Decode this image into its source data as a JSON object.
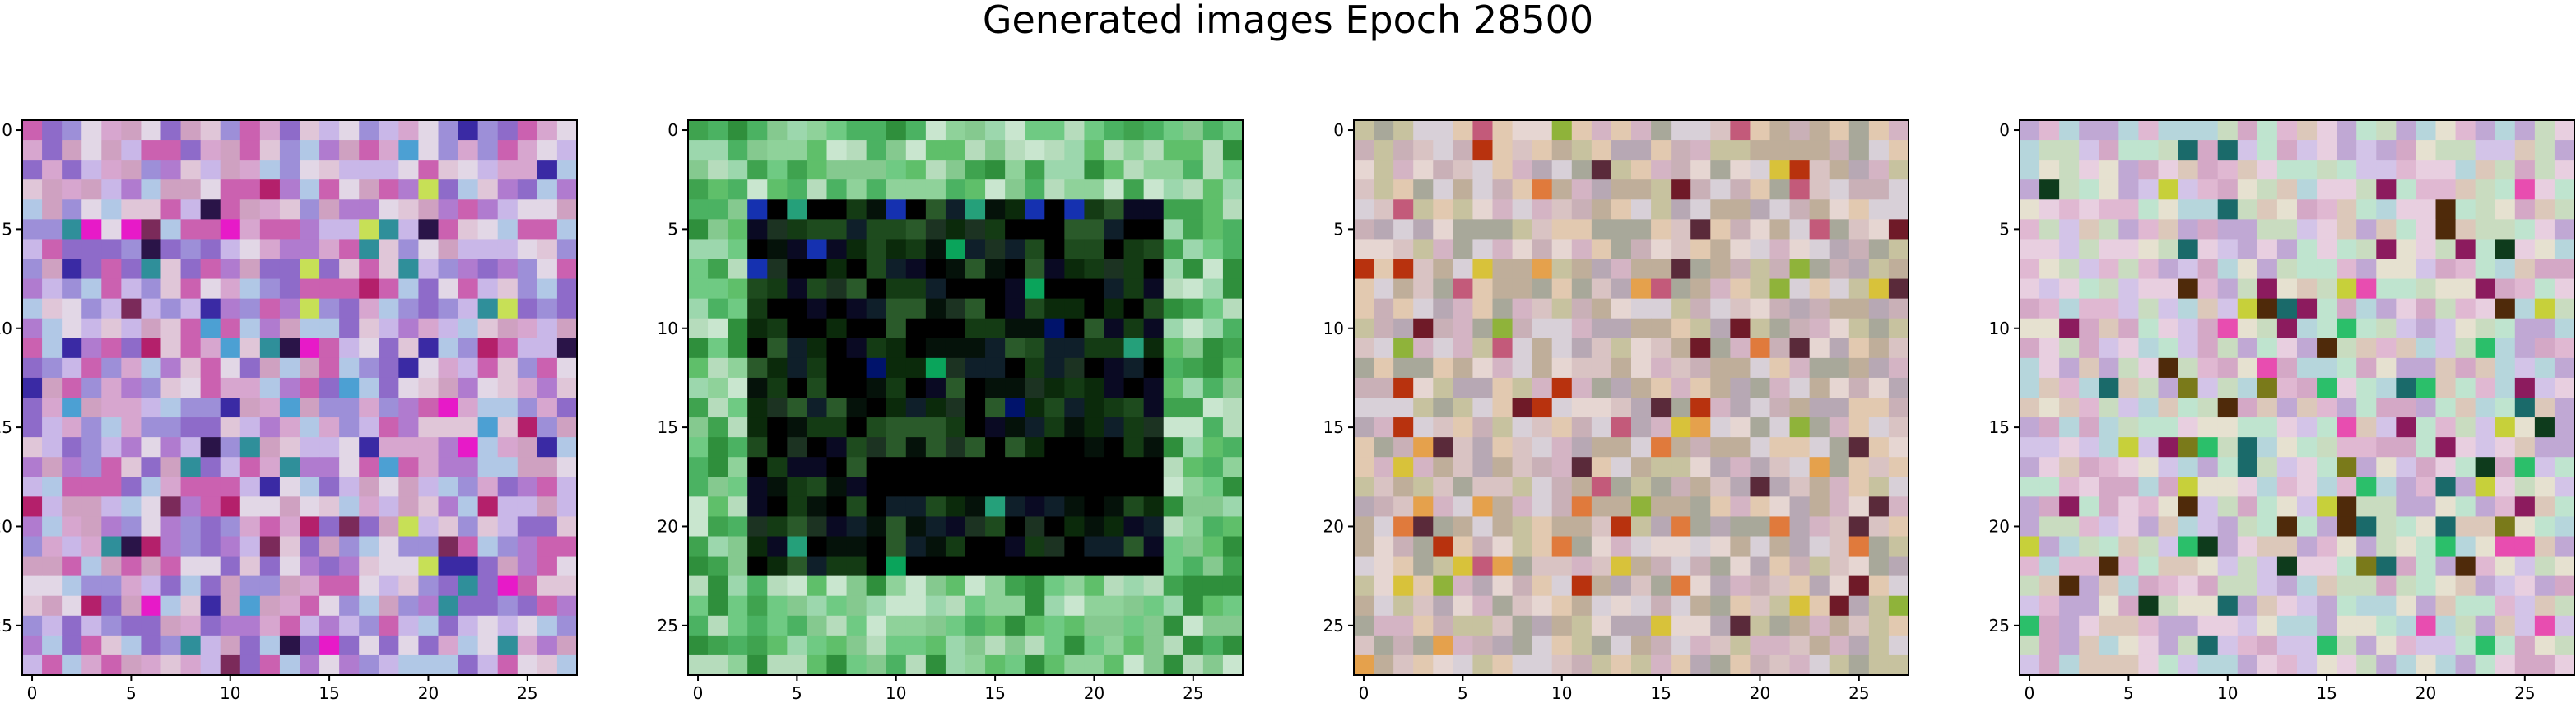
{
  "figure": {
    "title": "Generated images Epoch 28500"
  },
  "chart_data": [
    {
      "type": "heatmap",
      "title": "",
      "rows": 28,
      "cols": 28,
      "xlim": [
        -0.5,
        27.5
      ],
      "ylim": [
        27.5,
        -0.5
      ],
      "xticks": [
        "0",
        "5",
        "10",
        "15",
        "20",
        "25"
      ],
      "yticks": [
        "0",
        "5",
        "10",
        "15",
        "20",
        "25"
      ],
      "palette": "bright noise (pink, lavender, purple, blue)",
      "colors": [
        "#d7a6cf",
        "#c9b7e8",
        "#b07bcf",
        "#9d8fd8",
        "#e0c6d8",
        "#cfa1c1",
        "#8e6bc9",
        "#e2d7e6",
        "#b1c8e6",
        "#cb61b0"
      ],
      "accent_colors": [
        "#2a1448",
        "#e71ac8",
        "#3a2aa4",
        "#b4206b",
        "#4ca0d3",
        "#7b2a5a",
        "#c7e056",
        "#2f8f9a"
      ]
    },
    {
      "type": "heatmap",
      "title": "",
      "rows": 28,
      "cols": 28,
      "xlim": [
        -0.5,
        27.5
      ],
      "ylim": [
        27.5,
        -0.5
      ],
      "xticks": [
        "0",
        "5",
        "10",
        "15",
        "20",
        "25"
      ],
      "yticks": [
        "0",
        "5",
        "10",
        "15",
        "20",
        "25"
      ],
      "palette": "green border with dark center block",
      "colors": [
        "#5fbf6a",
        "#8fd29a",
        "#3fa34f",
        "#b6dcbc",
        "#2f8f3c",
        "#9cd7ad",
        "#6fca83",
        "#c9e6cf",
        "#4bb262",
        "#85c98f"
      ],
      "center_colors": [
        "#0b2a0b",
        "#000000",
        "#143b14",
        "#0f1f2a",
        "#1e4b1e",
        "#05120a",
        "#2a5a2a",
        "#0a0a23",
        "#1c3322",
        "#000000"
      ],
      "accent_colors": [
        "#1531b0",
        "#25a07a",
        "#00136b",
        "#0aa45b"
      ]
    },
    {
      "type": "heatmap",
      "title": "",
      "rows": 28,
      "cols": 28,
      "xlim": [
        -0.5,
        27.5
      ],
      "ylim": [
        27.5,
        -0.5
      ],
      "xticks": [
        "0",
        "5",
        "10",
        "15",
        "20",
        "25"
      ],
      "yticks": [
        "0",
        "5",
        "10",
        "15",
        "20",
        "25"
      ],
      "palette": "muted pastel noise (beige, pink, olive)",
      "colors": [
        "#d9c3c3",
        "#c9b0b7",
        "#e6d6d2",
        "#bfae9a",
        "#d4b4c4",
        "#c7c29f",
        "#e2c9b0",
        "#b7a8b4",
        "#d8d0d8",
        "#a8a89a"
      ],
      "accent_colors": [
        "#b8320e",
        "#6f1a28",
        "#e5a14c",
        "#8fb33a",
        "#c35a7a",
        "#d8c23a",
        "#5a2a3a",
        "#e07a3c"
      ]
    },
    {
      "type": "heatmap",
      "title": "",
      "rows": 28,
      "cols": 28,
      "xlim": [
        -0.5,
        27.5
      ],
      "ylim": [
        27.5,
        -0.5
      ],
      "xticks": [
        "0",
        "5",
        "10",
        "15",
        "20",
        "25"
      ],
      "yticks": [
        "0",
        "5",
        "10",
        "15",
        "20",
        "25"
      ],
      "palette": "pastel noise (pink, mint, lavender)",
      "colors": [
        "#e0b8d2",
        "#bfe4cf",
        "#d3c4e8",
        "#e8cfe0",
        "#c9dcc0",
        "#d4a8c6",
        "#b6d6dc",
        "#e6e1d0",
        "#c0a8d4",
        "#dcc8ba"
      ],
      "accent_colors": [
        "#0e3b1c",
        "#2bbf6a",
        "#8c1b5e",
        "#c7d03a",
        "#4f2a0a",
        "#1a6a6a",
        "#e84db0",
        "#7a7a1a"
      ]
    }
  ]
}
